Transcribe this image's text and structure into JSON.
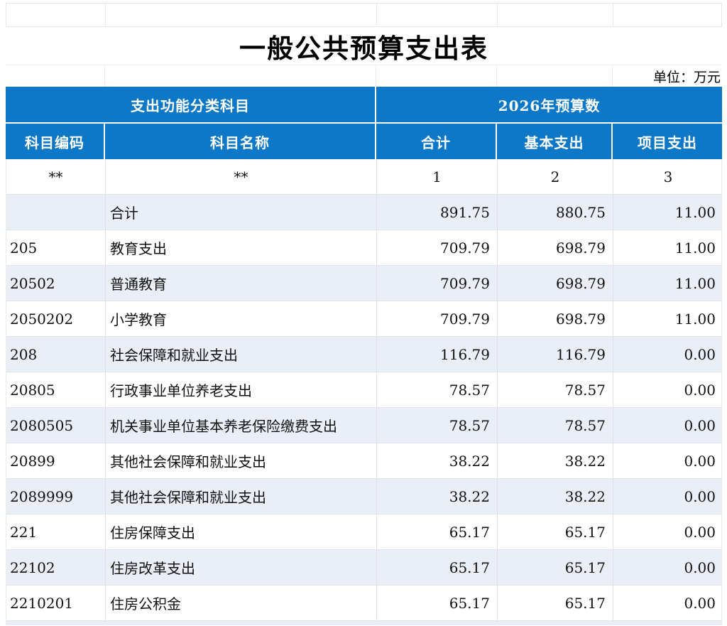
{
  "page": {
    "title": "一般公共预算支出表",
    "unit_label": "单位：万元"
  },
  "table": {
    "header_groups": {
      "function_category": "支出功能分类科目",
      "budget_year": "2026年预算数"
    },
    "columns": [
      "科目编码",
      "科目名称",
      "合计",
      "基本支出",
      "项目支出"
    ],
    "code_row": [
      "**",
      "**",
      "1",
      "2",
      "3"
    ],
    "rows": [
      {
        "code": "",
        "name": "合计",
        "total": "891.75",
        "basic": "880.75",
        "project": "11.00"
      },
      {
        "code": "205",
        "name": "教育支出",
        "total": "709.79",
        "basic": "698.79",
        "project": "11.00"
      },
      {
        "code": "20502",
        "name": "普通教育",
        "total": "709.79",
        "basic": "698.79",
        "project": "11.00"
      },
      {
        "code": "2050202",
        "name": "小学教育",
        "total": "709.79",
        "basic": "698.79",
        "project": "11.00"
      },
      {
        "code": "208",
        "name": "社会保障和就业支出",
        "total": "116.79",
        "basic": "116.79",
        "project": "0.00"
      },
      {
        "code": "20805",
        "name": "行政事业单位养老支出",
        "total": "78.57",
        "basic": "78.57",
        "project": "0.00"
      },
      {
        "code": "2080505",
        "name": "机关事业单位基本养老保险缴费支出",
        "total": "78.57",
        "basic": "78.57",
        "project": "0.00"
      },
      {
        "code": "20899",
        "name": "其他社会保障和就业支出",
        "total": "38.22",
        "basic": "38.22",
        "project": "0.00"
      },
      {
        "code": "2089999",
        "name": "其他社会保障和就业支出",
        "total": "38.22",
        "basic": "38.22",
        "project": "0.00"
      },
      {
        "code": "221",
        "name": "住房保障支出",
        "total": "65.17",
        "basic": "65.17",
        "project": "0.00"
      },
      {
        "code": "22102",
        "name": "住房改革支出",
        "total": "65.17",
        "basic": "65.17",
        "project": "0.00"
      },
      {
        "code": "2210201",
        "name": "住房公积金",
        "total": "65.17",
        "basic": "65.17",
        "project": "0.00"
      }
    ]
  },
  "colors": {
    "header_blue": "#0e78c8",
    "row_alt": "#eaeef7"
  }
}
